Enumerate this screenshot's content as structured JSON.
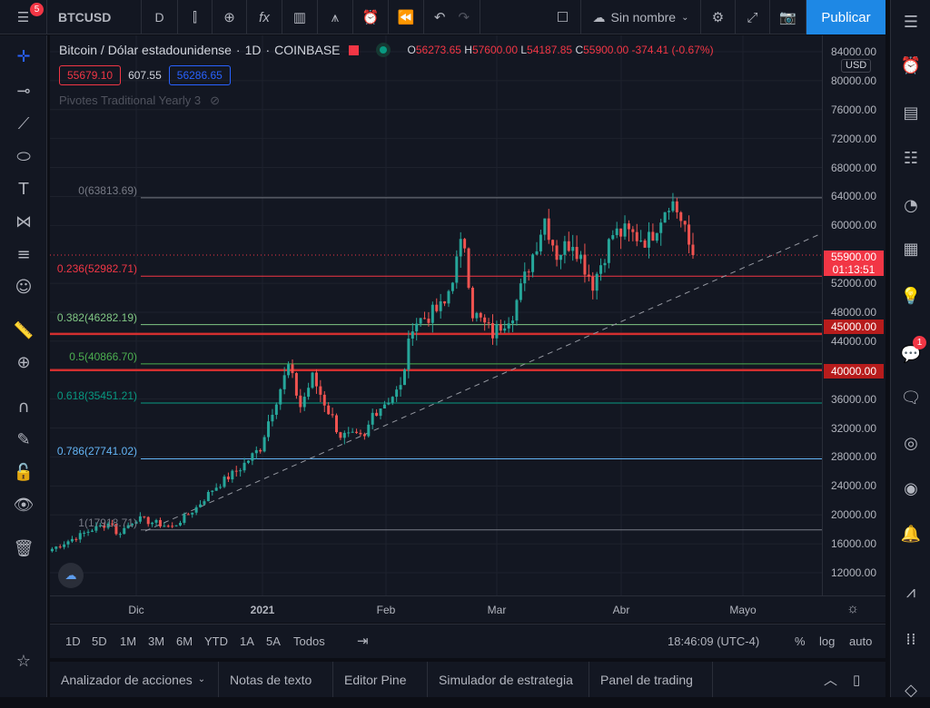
{
  "topbar": {
    "menu_badge": "5",
    "symbol": "BTCUSD",
    "interval": "D",
    "layout_name": "Sin nombre",
    "publish": "Publicar"
  },
  "legend": {
    "title": "Bitcoin / Dólar estadounidense",
    "interval": "1D",
    "exchange": "COINBASE",
    "o_label": "O",
    "o": "56273.65",
    "h_label": "H",
    "h": "57600.00",
    "l_label": "L",
    "l": "54187.85",
    "c_label": "C",
    "c": "55900.00",
    "change": "-374.41 (-0.67%)",
    "bid": "55679.10",
    "spread": "607.55",
    "ask": "56286.65",
    "indicator": "Pivotes Traditional Yearly 3"
  },
  "fib_levels": [
    {
      "label": "0(63813.69)",
      "price": 63813.69,
      "color": "#787b86"
    },
    {
      "label": "0.236(52982.71)",
      "price": 52982.71,
      "color": "#f23645"
    },
    {
      "label": "0.382(46282.19)",
      "price": 46282.19,
      "color": "#81c784"
    },
    {
      "label": "0.5(40866.70)",
      "price": 40866.7,
      "color": "#4caf50"
    },
    {
      "label": "0.618(35451.21)",
      "price": 35451.21,
      "color": "#089981"
    },
    {
      "label": "0.786(27741.02)",
      "price": 27741.02,
      "color": "#64b5f6"
    },
    {
      "label": "1(17918.71)",
      "price": 17918.71,
      "color": "#787b86"
    }
  ],
  "horizontal_lines": [
    45000,
    40000
  ],
  "price_axis": {
    "currency": "USD",
    "labels": [
      "84000.00",
      "80000.00",
      "76000.00",
      "72000.00",
      "68000.00",
      "64000.00",
      "60000.00",
      "52000.00",
      "48000.00",
      "44000.00",
      "36000.00",
      "32000.00",
      "28000.00",
      "24000.00",
      "20000.00",
      "16000.00",
      "12000.00"
    ],
    "current_price": "55900.00",
    "countdown": "01:13:51",
    "tag_45000": "45000.00",
    "tag_40000": "40000.00"
  },
  "time_axis": [
    "Dic",
    "2021",
    "Feb",
    "Mar",
    "Abr",
    "Mayo"
  ],
  "ranges": [
    "1D",
    "5D",
    "1M",
    "3M",
    "6M",
    "YTD",
    "1A",
    "5A",
    "Todos"
  ],
  "clock": "18:46:09 (UTC-4)",
  "scale_options": [
    "%",
    "log",
    "auto"
  ],
  "bottom_tabs": [
    "Analizador de acciones",
    "Notas de texto",
    "Editor Pine",
    "Simulador de estrategia",
    "Panel de trading"
  ],
  "right_badge": "1",
  "colors": {
    "up": "#26a69a",
    "down": "#ef5350",
    "accent": "#2962ff",
    "publish": "#1e88e5"
  },
  "chart_data": {
    "type": "candlestick",
    "note": "approximate daily closes; day index from 2020-11-10",
    "anchors": [
      [
        0,
        15300
      ],
      [
        10,
        18000
      ],
      [
        15,
        19000
      ],
      [
        16,
        17200
      ],
      [
        21,
        19500
      ],
      [
        30,
        18300
      ],
      [
        36,
        21000
      ],
      [
        40,
        23500
      ],
      [
        47,
        26500
      ],
      [
        52,
        29300
      ],
      [
        54,
        33000
      ],
      [
        59,
        40500
      ],
      [
        62,
        35000
      ],
      [
        65,
        39000
      ],
      [
        72,
        31000
      ],
      [
        78,
        30500
      ],
      [
        80,
        34000
      ],
      [
        87,
        37500
      ],
      [
        90,
        46500
      ],
      [
        94,
        47500
      ],
      [
        98,
        49000
      ],
      [
        102,
        57000
      ],
      [
        103,
        57500
      ],
      [
        105,
        48000
      ],
      [
        110,
        45000
      ],
      [
        115,
        48000
      ],
      [
        120,
        56000
      ],
      [
        123,
        61000
      ],
      [
        126,
        56000
      ],
      [
        130,
        58000
      ],
      [
        135,
        52000
      ],
      [
        140,
        58800
      ],
      [
        143,
        59000
      ],
      [
        149,
        58000
      ],
      [
        154,
        63500
      ],
      [
        155,
        63000
      ],
      [
        158,
        60000
      ],
      [
        159,
        56200
      ],
      [
        160,
        55900
      ]
    ]
  }
}
